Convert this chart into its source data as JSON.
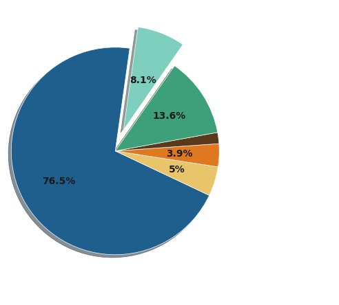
{
  "slices": [
    76.5,
    5.0,
    3.9,
    1.9,
    13.6,
    8.1
  ],
  "pct_labels": [
    "76.5%",
    "5%",
    "3.9%",
    "",
    "13.6%",
    "8.1%"
  ],
  "colors": [
    "#1e5f8e",
    "#e8c46a",
    "#e07820",
    "#5a3a1a",
    "#3da07a",
    "#7ecfbe"
  ],
  "explode": [
    0.0,
    0.0,
    0.0,
    0.0,
    0.0,
    0.22
  ],
  "startangle": 82,
  "shadow": true,
  "legend_colors": [
    "#1e5f8e",
    "#e8c46a",
    "#5a3a1a",
    "#e07820",
    "#888888",
    "#3da07a"
  ],
  "legend_labels": [
    "",
    "",
    "",
    "",
    "",
    ""
  ],
  "figsize": [
    4.92,
    4.44
  ],
  "dpi": 100,
  "label_fontsize": 10,
  "label_color": "#1a1a1a",
  "label_r": 0.62
}
